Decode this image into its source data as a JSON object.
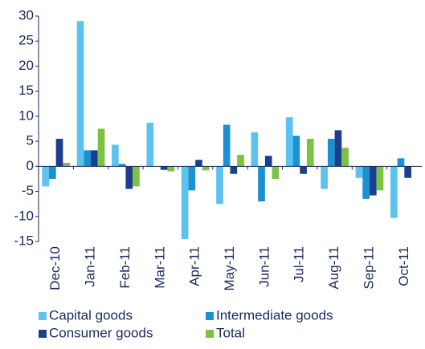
{
  "chart_data": {
    "type": "bar",
    "categories": [
      "Dec-10",
      "Jan-11",
      "Feb-11",
      "Mar-11",
      "Apr-11",
      "May-11",
      "Jun-11",
      "Jul-11",
      "Aug-11",
      "Sep-11",
      "Oct-11"
    ],
    "series": [
      {
        "name": "Capital goods",
        "color": "#5cc3ef",
        "values": [
          -4,
          29,
          4.3,
          8.7,
          -14.5,
          -7.5,
          6.8,
          9.8,
          -4.5,
          -2.3,
          -10.3
        ]
      },
      {
        "name": "Intermediate goods",
        "color": "#1b90d3",
        "values": [
          -2.5,
          3.2,
          0.5,
          0,
          -4.8,
          8.3,
          -7,
          6.1,
          5.5,
          -6.5,
          1.6
        ]
      },
      {
        "name": "Consumer goods",
        "color": "#1b3f8c",
        "values": [
          5.5,
          3.2,
          -4.5,
          -0.7,
          1.3,
          -1.5,
          2.1,
          -1.5,
          7.2,
          -5.8,
          -2.3
        ]
      },
      {
        "name": "Total",
        "color": "#7cc243",
        "values": [
          0.7,
          7.5,
          -4,
          -1,
          -0.8,
          2.3,
          -2.5,
          5.5,
          3.7,
          -4.8,
          null
        ]
      }
    ],
    "ylim": [
      -15,
      30
    ],
    "yticks": [
      -15,
      -10,
      -5,
      0,
      5,
      10,
      15,
      20,
      25,
      30
    ],
    "grid": false
  }
}
